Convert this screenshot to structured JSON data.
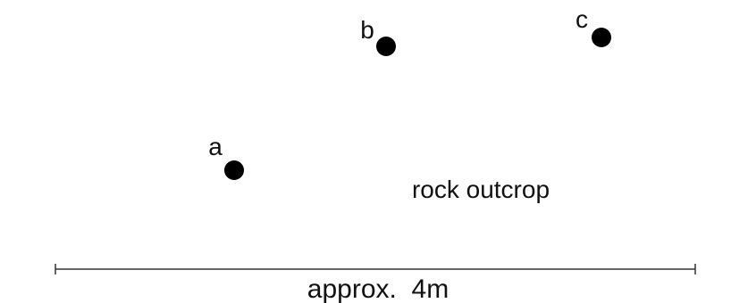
{
  "points": [
    {
      "label": "a"
    },
    {
      "label": "b"
    },
    {
      "label": "c"
    }
  ],
  "region_label": "rock outcrop",
  "scale_label": "approx.  4m"
}
